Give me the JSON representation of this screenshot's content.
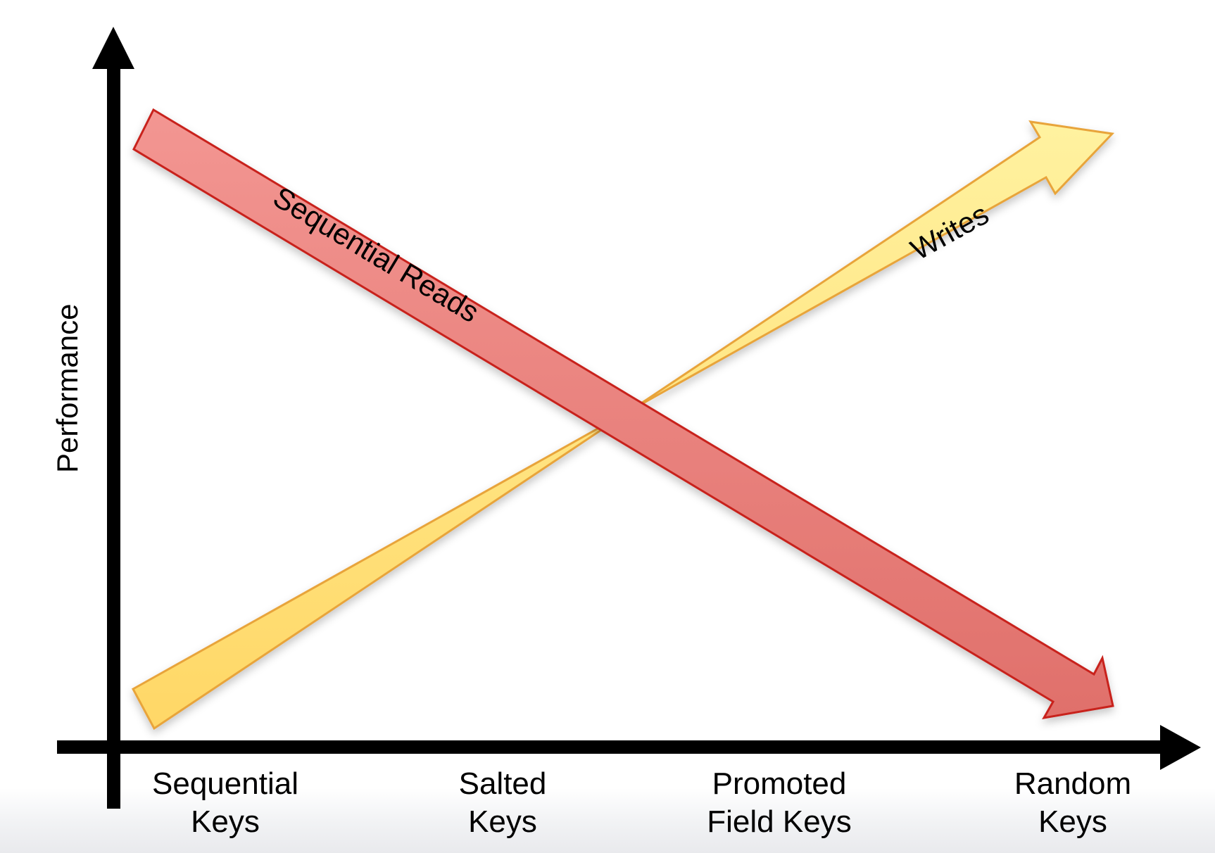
{
  "y_axis": {
    "label": "Performance"
  },
  "x_axis": {
    "categories": [
      {
        "line1": "Sequential",
        "line2": "Keys"
      },
      {
        "line1": "Salted",
        "line2": "Keys"
      },
      {
        "line1": "Promoted",
        "line2": "Field Keys"
      },
      {
        "line1": "Random",
        "line2": "Keys"
      }
    ]
  },
  "arrows": {
    "reads": {
      "label": "Sequential Reads",
      "trend": "decreasing",
      "fill": "#e87a76",
      "stroke": "#c8201b"
    },
    "writes": {
      "label": "Writes",
      "trend": "increasing",
      "fill": "#ffe27a",
      "stroke": "#e8a43a"
    }
  },
  "colors": {
    "axis": "#000000",
    "background": "#ffffff"
  }
}
